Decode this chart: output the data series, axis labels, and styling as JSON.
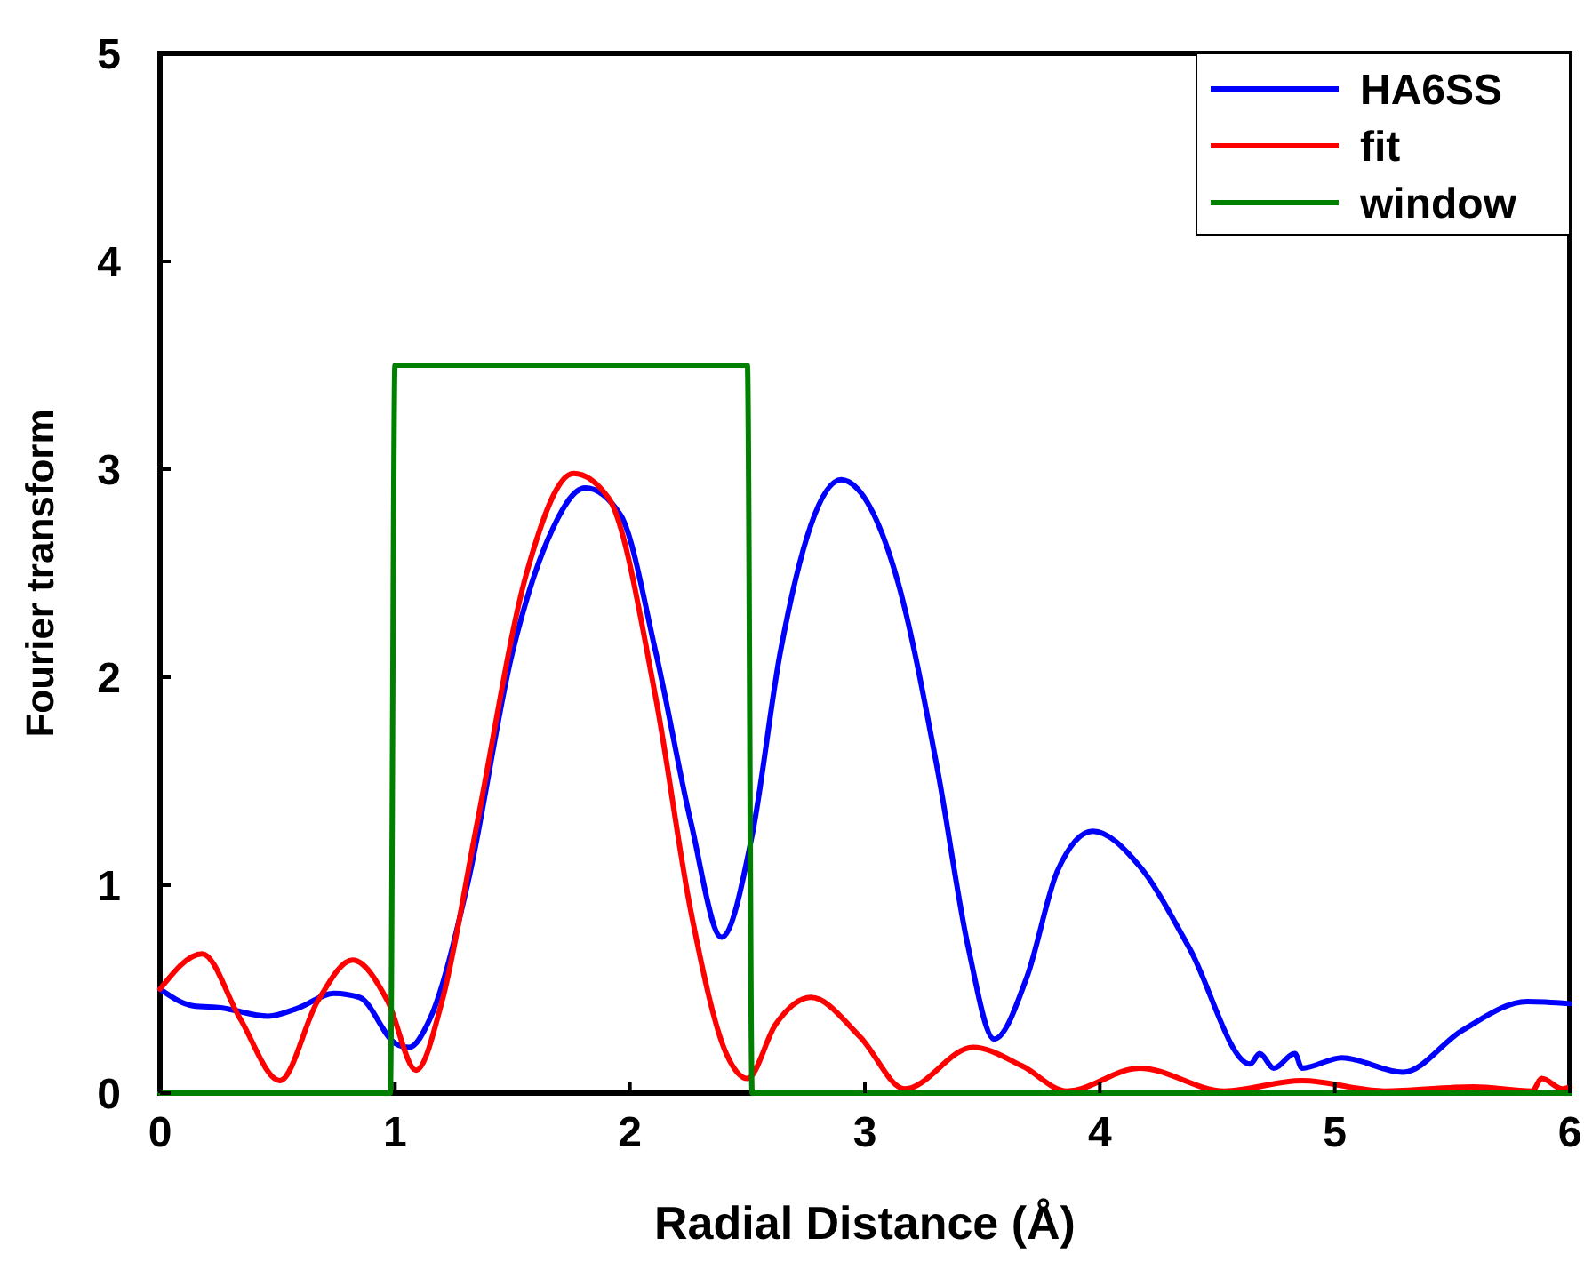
{
  "chart_data": {
    "type": "line",
    "xlabel": "Radial Distance (Å)",
    "ylabel": "Fourier transform",
    "xlim": [
      0,
      6
    ],
    "ylim": [
      0,
      5
    ],
    "xticks": [
      0,
      1,
      2,
      3,
      4,
      5,
      6
    ],
    "yticks": [
      0,
      1,
      2,
      3,
      4,
      5
    ],
    "grid": false,
    "legend": "top right",
    "line_style": "solid",
    "marker": "none",
    "series": [
      {
        "name": "HA6SS",
        "color": "#0000ff",
        "x": [
          0,
          0.14,
          0.26,
          0.46,
          0.59,
          0.74,
          0.85,
          1.0,
          1.06,
          1.15,
          1.31,
          1.5,
          1.65,
          1.81,
          1.96,
          2.11,
          2.26,
          2.39,
          2.52,
          2.64,
          2.9,
          2.93,
          3.14,
          3.31,
          3.44,
          3.55,
          3.69,
          3.82,
          3.97,
          4.17,
          4.38,
          4.64,
          4.68,
          4.74,
          4.83,
          4.86,
          5.03,
          5.29,
          5.54,
          5.82,
          6.0
        ],
        "values": [
          0.5,
          0.42,
          0.41,
          0.37,
          0.41,
          0.48,
          0.46,
          0.24,
          0.22,
          0.36,
          1.01,
          2.12,
          2.66,
          2.91,
          2.78,
          2.12,
          1.3,
          0.75,
          1.24,
          2.12,
          2.95,
          2.94,
          2.46,
          1.55,
          0.7,
          0.26,
          0.56,
          1.07,
          1.26,
          1.09,
          0.7,
          0.14,
          0.19,
          0.12,
          0.19,
          0.12,
          0.17,
          0.1,
          0.3,
          0.44,
          0.43
        ]
      },
      {
        "name": "fit",
        "color": "#ff0000",
        "x": [
          0,
          0.18,
          0.34,
          0.51,
          0.67,
          0.82,
          0.97,
          1.09,
          1.2,
          1.35,
          1.56,
          1.76,
          1.91,
          2.11,
          2.26,
          2.41,
          2.5,
          2.62,
          2.77,
          2.98,
          3.17,
          3.46,
          3.67,
          3.86,
          4.17,
          4.53,
          4.86,
          5.21,
          5.59,
          5.84,
          5.88,
          5.97,
          6.0
        ],
        "values": [
          0.5,
          0.67,
          0.36,
          0.06,
          0.44,
          0.64,
          0.44,
          0.11,
          0.44,
          1.3,
          2.5,
          2.98,
          2.86,
          1.9,
          0.87,
          0.19,
          0.07,
          0.33,
          0.46,
          0.27,
          0.02,
          0.22,
          0.13,
          0.01,
          0.12,
          0.01,
          0.06,
          0.01,
          0.03,
          0.01,
          0.07,
          0.02,
          0.03
        ]
      },
      {
        "name": "window",
        "color": "#008000",
        "x": [
          0,
          0.98,
          1.0,
          2.5,
          2.52,
          6
        ],
        "values": [
          0,
          0,
          3.5,
          3.5,
          0,
          0
        ]
      }
    ]
  }
}
